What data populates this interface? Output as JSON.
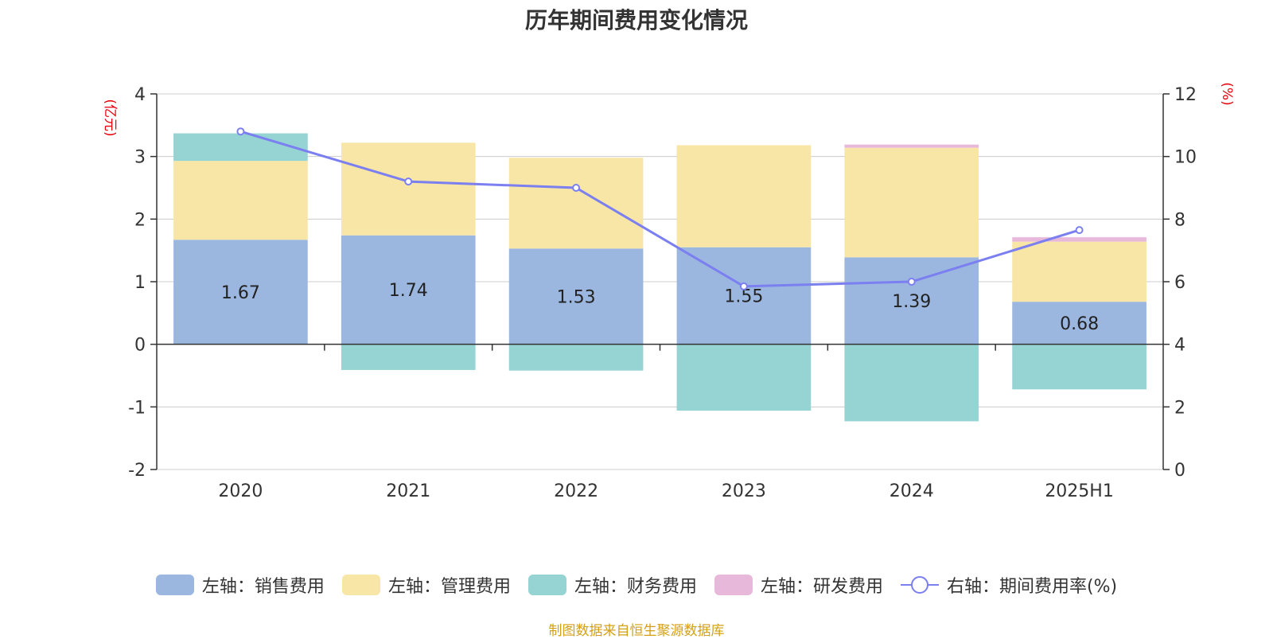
{
  "chart_data": {
    "type": "bar",
    "title": "历年期间费用变化情况",
    "categories": [
      "2020",
      "2021",
      "2022",
      "2023",
      "2024",
      "2025H1"
    ],
    "left_axis": {
      "unit_label": "(亿元)",
      "ylim": [
        -2,
        4
      ],
      "ticks": [
        -2,
        -1,
        0,
        1,
        2,
        3,
        4
      ]
    },
    "right_axis": {
      "unit_label": "(%)",
      "ylim": [
        0,
        12
      ],
      "ticks": [
        0,
        2,
        4,
        6,
        8,
        10,
        12
      ]
    },
    "grid": true,
    "legend_position": "bottom",
    "series": [
      {
        "name": "左轴：销售费用",
        "axis": "left",
        "stack": true,
        "color": "#9bb7e0",
        "values": [
          1.67,
          1.74,
          1.53,
          1.55,
          1.39,
          0.68
        ],
        "show_labels": true
      },
      {
        "name": "左轴：管理费用",
        "axis": "left",
        "stack": true,
        "color": "#f7e6a6",
        "values": [
          1.26,
          1.48,
          1.45,
          1.63,
          1.75,
          0.96
        ]
      },
      {
        "name": "左轴：财务费用",
        "axis": "left",
        "stack": true,
        "color": "#96d3d3",
        "values": [
          0.44,
          -0.41,
          -0.42,
          -1.06,
          -1.23,
          -0.72
        ]
      },
      {
        "name": "左轴：研发费用",
        "axis": "left",
        "stack": true,
        "color": "#e8b8da",
        "values": [
          0,
          0,
          0,
          0,
          0.05,
          0.07
        ]
      },
      {
        "name": "右轴：期间费用率(%)",
        "axis": "right",
        "type": "line",
        "color": "#7b7ff0",
        "values": [
          10.8,
          9.2,
          9.0,
          5.85,
          6.0,
          7.65
        ]
      }
    ]
  },
  "footer": {
    "text": "制图数据来自恒生聚源数据库",
    "color": "#d4a017"
  },
  "colors": {
    "axis_unit": "#e8000b",
    "grid": "#cccccc",
    "axis": "#333333",
    "text": "#333333"
  }
}
